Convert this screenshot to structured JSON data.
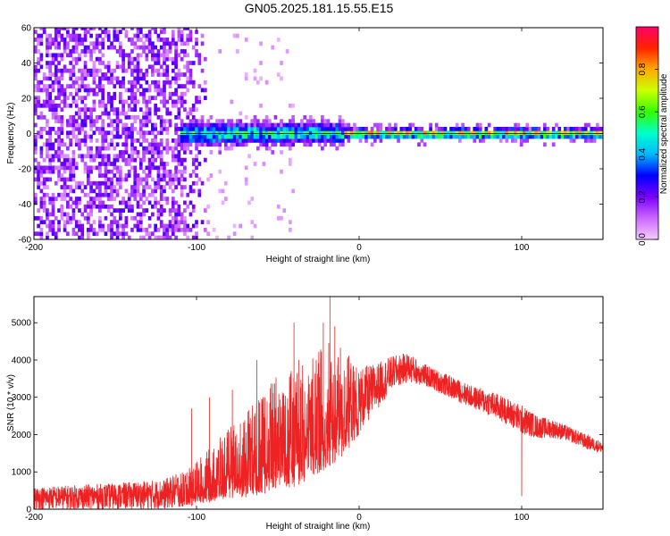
{
  "title": "GN05.2025.181.15.55.E15",
  "chart_data": [
    {
      "type": "heatmap",
      "xlabel": "Height of straight line (km)",
      "ylabel": "Frequency (Hz)",
      "xlim": [
        -200,
        150
      ],
      "ylim": [
        -60,
        60
      ],
      "xticks": [
        -200,
        -100,
        0,
        100
      ],
      "yticks": [
        60,
        40,
        20,
        0,
        -20,
        -40,
        -60
      ],
      "colorbar": {
        "label": "Normalized spectral amplitude",
        "range": [
          0,
          1
        ],
        "ticks": [
          "0.0",
          "0.2",
          "0.4",
          "0.6",
          "0.8"
        ],
        "colors": [
          "#f4ccff",
          "#cc66ff",
          "#7a00ff",
          "#0000ff",
          "#00b8ff",
          "#00ffcc",
          "#33ff00",
          "#ccff00",
          "#ffaa00",
          "#ff2200",
          "#ff0066"
        ]
      },
      "features": {
        "noise_region_x": [
          -200,
          -95
        ],
        "band_start_x": -110,
        "band_center_hz": 0,
        "band_peak_x_range": [
          -10,
          130
        ]
      },
      "grid": false
    },
    {
      "type": "line",
      "xlabel": "Height of straight line (km)",
      "ylabel": "SNR (10 * v/v)",
      "xlim": [
        -200,
        150
      ],
      "ylim": [
        0,
        5700
      ],
      "xticks": [
        -200,
        -100,
        0,
        100
      ],
      "yticks": [
        0,
        1000,
        2000,
        3000,
        4000,
        5000
      ],
      "color": "#ee2222",
      "envelope": {
        "x": [
          -200,
          -150,
          -120,
          -110,
          -100,
          -90,
          -80,
          -70,
          -60,
          -50,
          -40,
          -30,
          -20,
          -10,
          0,
          10,
          20,
          30,
          40,
          50,
          60,
          70,
          80,
          90,
          100,
          110,
          120,
          130,
          140,
          150
        ],
        "lower": [
          0,
          0,
          0,
          50,
          100,
          200,
          300,
          300,
          400,
          500,
          600,
          800,
          1100,
          1400,
          2000,
          2600,
          3200,
          3400,
          3300,
          3100,
          2900,
          2700,
          2500,
          2300,
          2000,
          1900,
          1900,
          1800,
          1600,
          1500
        ],
        "upper": [
          600,
          700,
          800,
          1000,
          1300,
          1700,
          2200,
          2700,
          3000,
          3800,
          3700,
          4000,
          4500,
          4300,
          3800,
          3900,
          4100,
          4200,
          3900,
          3700,
          3500,
          3300,
          3200,
          3000,
          2800,
          2500,
          2400,
          2200,
          2000,
          1800
        ]
      },
      "spikes": [
        {
          "x": -103,
          "y": 2700
        },
        {
          "x": -92,
          "y": 3000
        },
        {
          "x": -78,
          "y": 3200
        },
        {
          "x": -63,
          "y": 4000
        },
        {
          "x": -58,
          "y": 3000
        },
        {
          "x": -40,
          "y": 5000
        },
        {
          "x": -37,
          "y": 4000
        },
        {
          "x": -22,
          "y": 5000
        },
        {
          "x": -18,
          "y": 5700
        },
        {
          "x": -15,
          "y": 4900
        },
        {
          "x": 100,
          "y": 350
        }
      ],
      "grid": false
    }
  ]
}
